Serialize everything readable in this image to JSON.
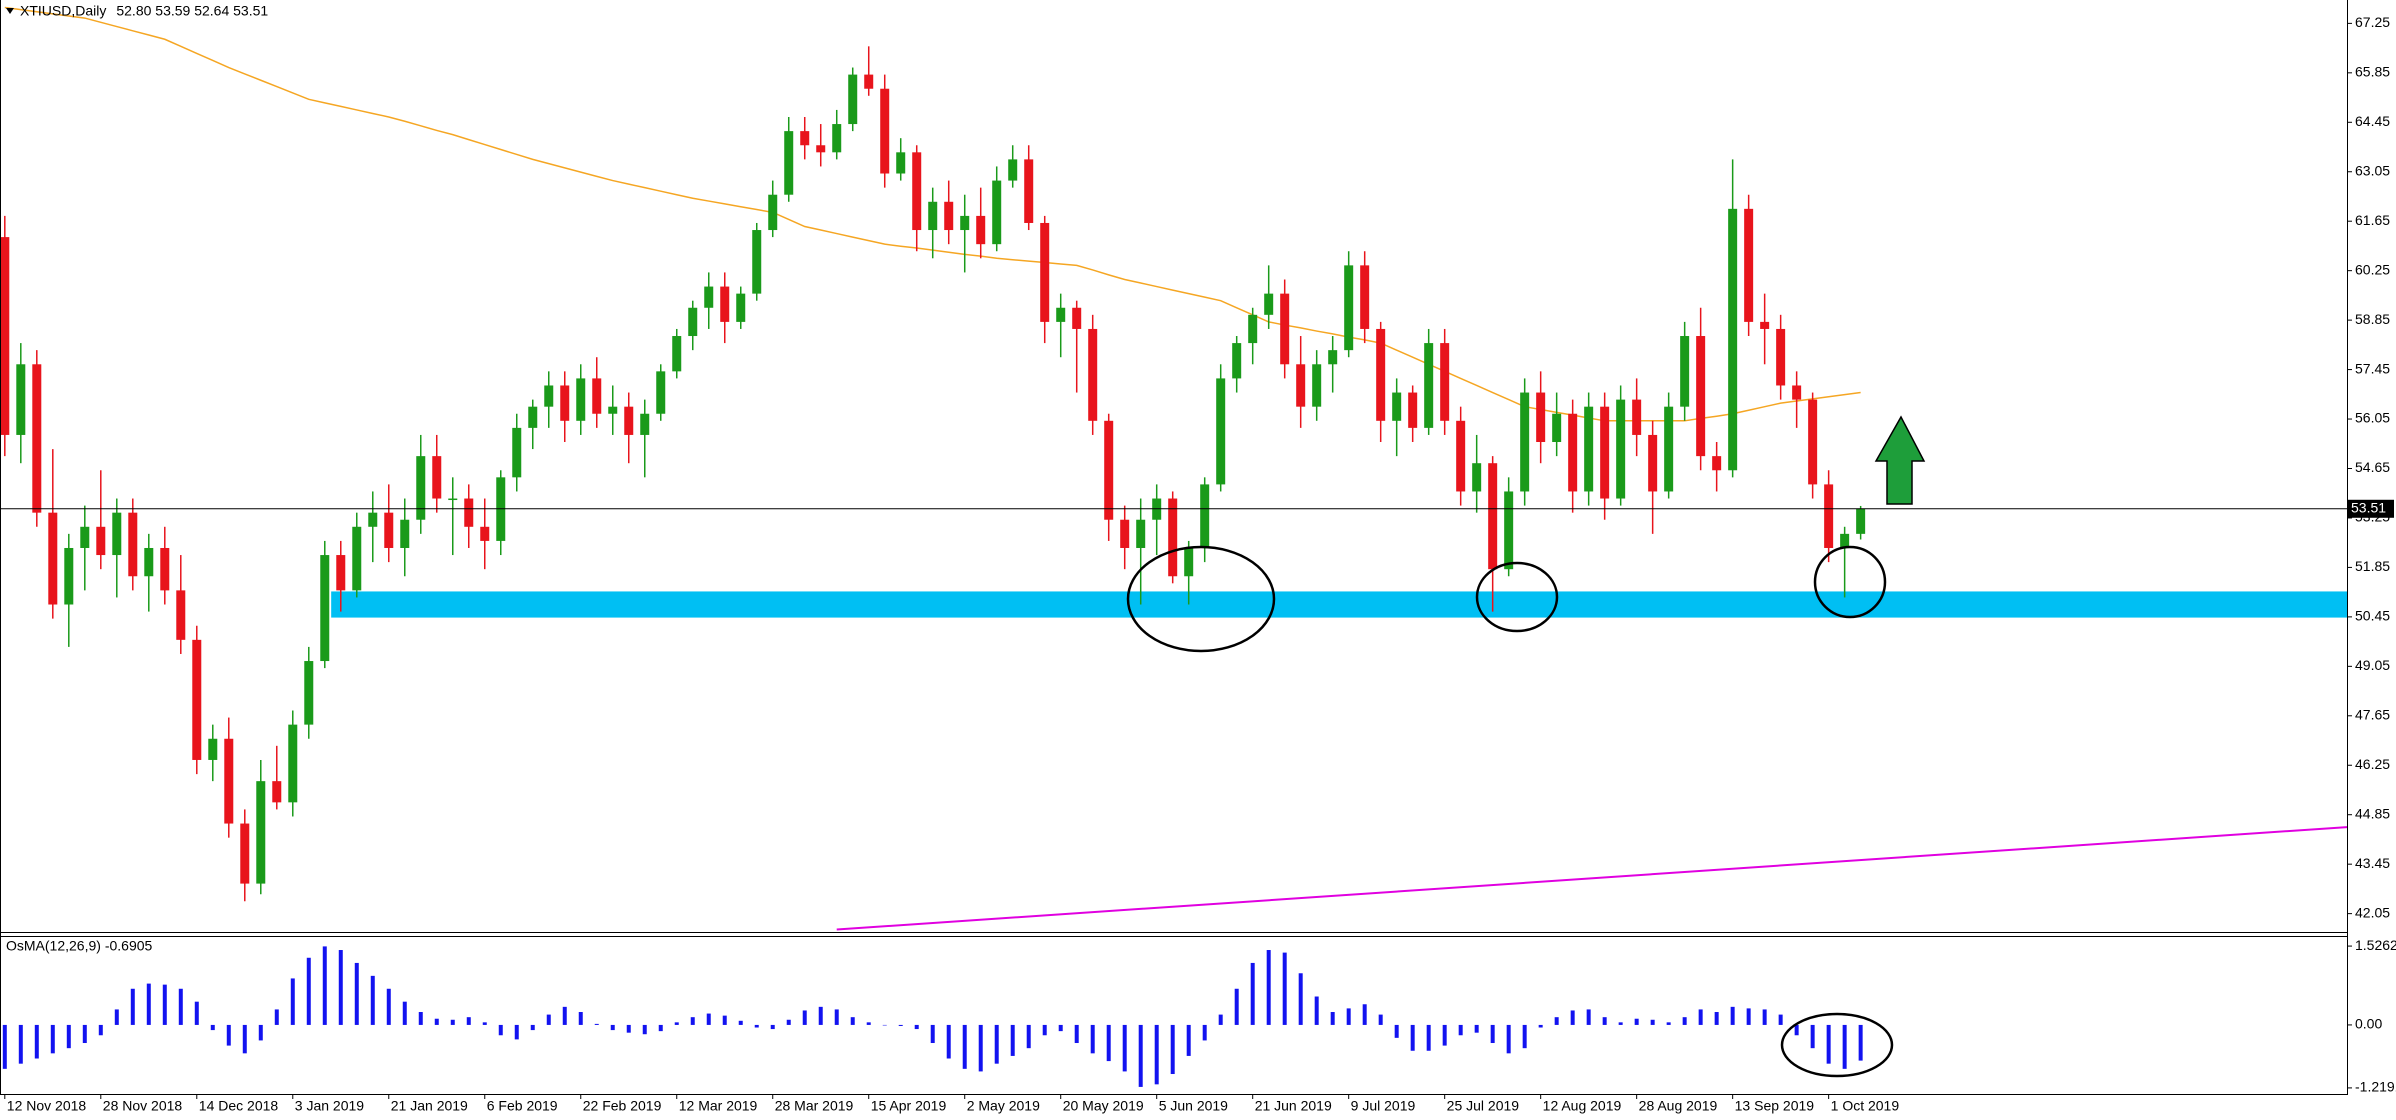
{
  "chart_data": [
    {
      "type": "candlestick",
      "title": "XTIUSD,Daily",
      "subtitle": "52.80 53.59 52.64 53.51",
      "categories": [
        "12 Nov 2018",
        null,
        null,
        null,
        null,
        null,
        "28 Nov 2018",
        null,
        null,
        null,
        null,
        null,
        "14 Dec 2018",
        null,
        null,
        null,
        null,
        null,
        "3 Jan 2019",
        null,
        null,
        null,
        null,
        null,
        "21 Jan 2019",
        null,
        null,
        null,
        null,
        null,
        "6 Feb 2019",
        null,
        null,
        null,
        null,
        null,
        "22 Feb 2019",
        null,
        null,
        null,
        null,
        null,
        "12 Mar 2019",
        null,
        null,
        null,
        null,
        null,
        "28 Mar 2019",
        null,
        null,
        null,
        null,
        null,
        "15 Apr 2019",
        null,
        null,
        null,
        null,
        null,
        "2 May 2019",
        null,
        null,
        null,
        null,
        null,
        "20 May 2019",
        null,
        null,
        null,
        null,
        null,
        "5 Jun 2019",
        null,
        null,
        null,
        null,
        null,
        "21 Jun 2019",
        null,
        null,
        null,
        null,
        null,
        "9 Jul 2019",
        null,
        null,
        null,
        null,
        null,
        "25 Jul 2019",
        null,
        null,
        null,
        null,
        null,
        "12 Aug 2019",
        null,
        null,
        null,
        null,
        null,
        "28 Aug 2019",
        null,
        null,
        null,
        null,
        null,
        "13 Sep 2019",
        null,
        null,
        null,
        null,
        null,
        "1 Oct 2019",
        null,
        null
      ],
      "open": [
        61.2,
        55.6,
        57.6,
        53.4,
        50.8,
        52.4,
        53.0,
        52.2,
        53.4,
        51.6,
        52.4,
        51.2,
        49.8,
        46.4,
        47.0,
        44.6,
        42.9,
        45.8,
        45.2,
        47.4,
        49.2,
        52.2,
        51.2,
        53.0,
        53.4,
        52.4,
        53.2,
        55.0,
        53.8,
        53.8,
        53.0,
        52.6,
        54.4,
        55.8,
        56.4,
        57.0,
        56.0,
        57.2,
        56.2,
        56.4,
        55.6,
        56.2,
        57.4,
        58.4,
        59.2,
        59.8,
        58.8,
        59.6,
        61.4,
        62.4,
        64.2,
        63.8,
        63.6,
        64.4,
        65.8,
        65.4,
        63.0,
        63.6,
        61.4,
        62.2,
        61.4,
        61.8,
        61.0,
        62.8,
        63.4,
        61.6,
        58.8,
        59.2,
        58.6,
        56.0,
        53.2,
        52.4,
        53.2,
        53.8,
        51.6,
        52.4,
        54.2,
        57.2,
        58.2,
        59.0,
        59.6,
        57.6,
        56.4,
        57.6,
        58.0,
        60.4,
        58.6,
        56.0,
        56.8,
        55.8,
        58.2,
        56.0,
        54.0,
        54.8,
        51.8,
        54.0,
        56.8,
        55.4,
        56.2,
        54.0,
        56.4,
        53.8,
        56.6,
        55.6,
        54.0,
        56.4,
        58.4,
        55.0,
        54.6,
        62.0,
        58.8,
        58.6,
        57.0,
        56.6,
        54.2,
        52.4,
        52.8
      ],
      "high": [
        61.8,
        58.2,
        58.0,
        55.2,
        52.8,
        53.6,
        54.6,
        53.8,
        53.8,
        52.8,
        53.0,
        52.2,
        50.2,
        47.4,
        47.6,
        45.0,
        46.4,
        46.8,
        47.8,
        49.6,
        52.6,
        52.6,
        53.4,
        54.0,
        54.2,
        53.8,
        55.6,
        55.6,
        54.4,
        54.2,
        53.8,
        54.6,
        56.2,
        56.6,
        57.4,
        57.4,
        57.6,
        57.8,
        57.0,
        56.8,
        56.6,
        57.6,
        58.6,
        59.4,
        60.2,
        60.2,
        59.8,
        61.6,
        62.8,
        64.6,
        64.6,
        64.4,
        64.8,
        66.0,
        66.6,
        65.8,
        64.0,
        63.8,
        62.6,
        62.8,
        62.4,
        62.6,
        63.2,
        63.8,
        63.8,
        61.8,
        59.6,
        59.4,
        59.0,
        56.2,
        53.6,
        53.8,
        54.2,
        54.0,
        52.6,
        54.4,
        57.6,
        58.4,
        59.2,
        60.4,
        60.0,
        58.4,
        58.0,
        58.4,
        60.8,
        60.8,
        58.8,
        57.2,
        57.0,
        58.6,
        58.6,
        56.4,
        55.6,
        55.0,
        54.4,
        57.2,
        57.4,
        56.8,
        56.6,
        56.8,
        56.8,
        57.0,
        57.2,
        56.0,
        56.8,
        58.8,
        59.2,
        55.4,
        63.4,
        62.4,
        59.6,
        59.0,
        57.4,
        56.8,
        54.6,
        53.0,
        53.59
      ],
      "low": [
        55.0,
        54.8,
        53.0,
        50.4,
        49.6,
        51.2,
        51.8,
        51.0,
        51.2,
        50.6,
        50.8,
        49.4,
        46.0,
        45.8,
        44.2,
        42.4,
        42.6,
        45.0,
        44.8,
        47.0,
        49.0,
        50.6,
        51.0,
        52.0,
        52.0,
        51.6,
        52.8,
        53.4,
        52.2,
        52.4,
        51.8,
        52.2,
        54.0,
        55.2,
        55.8,
        55.4,
        55.6,
        55.8,
        55.6,
        54.8,
        54.4,
        56.0,
        57.2,
        58.0,
        58.6,
        58.2,
        58.6,
        59.4,
        61.2,
        62.2,
        63.4,
        63.2,
        63.4,
        64.2,
        65.2,
        62.6,
        62.8,
        60.8,
        60.6,
        61.0,
        60.2,
        60.6,
        60.8,
        62.6,
        61.4,
        58.2,
        57.8,
        56.8,
        55.6,
        52.6,
        51.8,
        50.8,
        52.2,
        51.4,
        50.8,
        52.0,
        54.0,
        56.8,
        57.6,
        58.6,
        57.2,
        55.8,
        56.0,
        56.8,
        57.8,
        58.2,
        55.4,
        55.0,
        55.4,
        55.6,
        55.6,
        53.6,
        53.4,
        50.6,
        51.6,
        53.6,
        54.8,
        55.0,
        53.4,
        53.6,
        53.2,
        53.6,
        55.0,
        52.8,
        53.8,
        56.0,
        54.6,
        54.0,
        54.4,
        58.4,
        57.6,
        56.6,
        55.8,
        53.8,
        52.0,
        51.0,
        52.64
      ],
      "close": [
        55.6,
        57.6,
        53.4,
        50.8,
        52.4,
        53.0,
        52.2,
        53.4,
        51.6,
        52.4,
        51.2,
        49.8,
        46.4,
        47.0,
        44.6,
        42.9,
        45.8,
        45.2,
        47.4,
        49.2,
        52.2,
        51.2,
        53.0,
        53.4,
        52.4,
        53.2,
        55.0,
        53.8,
        53.8,
        53.0,
        52.6,
        54.4,
        55.8,
        56.4,
        57.0,
        56.0,
        57.2,
        56.2,
        56.4,
        55.6,
        56.2,
        57.4,
        58.4,
        59.2,
        59.8,
        58.8,
        59.6,
        61.4,
        62.4,
        64.2,
        63.8,
        63.6,
        64.4,
        65.8,
        65.4,
        63.0,
        63.6,
        61.4,
        62.2,
        61.4,
        61.8,
        61.0,
        62.8,
        63.4,
        61.6,
        58.8,
        59.2,
        58.6,
        56.0,
        53.2,
        52.4,
        53.2,
        53.8,
        51.6,
        52.4,
        54.2,
        57.2,
        58.2,
        59.0,
        59.6,
        57.6,
        56.4,
        57.6,
        58.0,
        60.4,
        58.6,
        56.0,
        56.8,
        55.8,
        58.2,
        56.0,
        54.0,
        54.8,
        51.8,
        54.0,
        56.8,
        55.4,
        56.2,
        54.0,
        56.4,
        53.8,
        56.6,
        55.6,
        54.0,
        56.4,
        58.4,
        55.0,
        54.6,
        62.0,
        58.8,
        58.6,
        57.0,
        56.6,
        54.2,
        52.4,
        52.8,
        53.51
      ],
      "up_color": "#1a9a1a",
      "down_color": "#e8141c",
      "ma": [
        67.7,
        67.64,
        67.58,
        67.52,
        67.46,
        67.4,
        67.28,
        67.16,
        67.04,
        66.92,
        66.8,
        66.6,
        66.4,
        66.2,
        66.0,
        65.82,
        65.64,
        65.46,
        65.28,
        65.1,
        65.0,
        64.9,
        64.8,
        64.7,
        64.6,
        64.48,
        64.35,
        64.22,
        64.1,
        63.96,
        63.82,
        63.68,
        63.54,
        63.4,
        63.28,
        63.16,
        63.04,
        62.92,
        62.8,
        62.7,
        62.6,
        62.5,
        62.4,
        62.3,
        62.22,
        62.14,
        62.06,
        61.98,
        61.9,
        61.7,
        61.5,
        61.4,
        61.3,
        61.2,
        61.1,
        61.0,
        60.94,
        60.89,
        60.83,
        60.77,
        60.71,
        60.66,
        60.6,
        60.56,
        60.52,
        60.48,
        60.44,
        60.4,
        60.27,
        60.13,
        60.0,
        59.9,
        59.8,
        59.7,
        59.6,
        59.5,
        59.4,
        59.2,
        59.0,
        58.8,
        58.71,
        58.63,
        58.54,
        58.46,
        58.37,
        58.29,
        58.2,
        58.0,
        57.8,
        57.6,
        57.4,
        57.2,
        57.0,
        56.8,
        56.6,
        56.4,
        56.32,
        56.24,
        56.16,
        56.08,
        56.0,
        56.0,
        56.0,
        56.0,
        56.0,
        56.0,
        56.07,
        56.13,
        56.2,
        56.3,
        56.4,
        56.5,
        56.56,
        56.62,
        56.68,
        56.74,
        56.8
      ],
      "ma_color": "#f5a623",
      "zone": {
        "color": "#00bff3",
        "x": [
          20.4,
          146.4
        ],
        "range": [
          50.43,
          51.17
        ]
      },
      "trendline": {
        "color": "#e000e0",
        "x": [
          52,
          146.4
        ],
        "values": [
          41.6,
          44.5
        ]
      },
      "current_price": 53.51,
      "xlim": [
        -0.3,
        146.4
      ],
      "ylim": [
        41.53,
        67.77
      ],
      "yticks": [
        42.05,
        43.45,
        44.85,
        46.25,
        47.65,
        49.05,
        50.45,
        51.85,
        53.25,
        54.65,
        56.05,
        57.45,
        58.85,
        60.25,
        61.65,
        63.05,
        64.45,
        65.85,
        67.25
      ]
    },
    {
      "type": "bar",
      "title": "OsMA(12,26,9) -0.6905",
      "color": "#1212f0",
      "values": [
        -0.85,
        -0.75,
        -0.65,
        -0.55,
        -0.45,
        -0.35,
        -0.2,
        0.3,
        0.7,
        0.8,
        0.78,
        0.7,
        0.45,
        -0.1,
        -0.4,
        -0.55,
        -0.3,
        0.3,
        0.9,
        1.3,
        1.52,
        1.45,
        1.2,
        0.95,
        0.7,
        0.45,
        0.25,
        0.12,
        0.1,
        0.15,
        0.05,
        -0.2,
        -0.28,
        -0.1,
        0.2,
        0.35,
        0.25,
        0.02,
        -0.1,
        -0.15,
        -0.18,
        -0.12,
        0.05,
        0.15,
        0.22,
        0.18,
        0.08,
        -0.05,
        -0.08,
        0.1,
        0.28,
        0.35,
        0.3,
        0.15,
        0.05,
        0.0,
        -0.02,
        -0.08,
        -0.35,
        -0.65,
        -0.85,
        -0.9,
        -0.75,
        -0.6,
        -0.45,
        -0.2,
        -0.12,
        -0.35,
        -0.55,
        -0.7,
        -0.9,
        -1.2,
        -1.15,
        -0.95,
        -0.6,
        -0.3,
        0.2,
        0.7,
        1.2,
        1.45,
        1.4,
        1.0,
        0.55,
        0.25,
        0.32,
        0.4,
        0.2,
        -0.25,
        -0.5,
        -0.5,
        -0.4,
        -0.2,
        -0.15,
        -0.35,
        -0.55,
        -0.45,
        -0.05,
        0.15,
        0.28,
        0.3,
        0.15,
        0.05,
        0.12,
        0.1,
        0.05,
        0.15,
        0.3,
        0.25,
        0.35,
        0.32,
        0.3,
        0.2,
        -0.2,
        -0.45,
        -0.75,
        -0.85,
        -0.6905
      ],
      "ylim": [
        -1.337,
        1.702
      ],
      "yticks": [
        1.5262,
        {
          "value": 0,
          "label": "0.00"
        },
        -1.2191
      ]
    }
  ]
}
